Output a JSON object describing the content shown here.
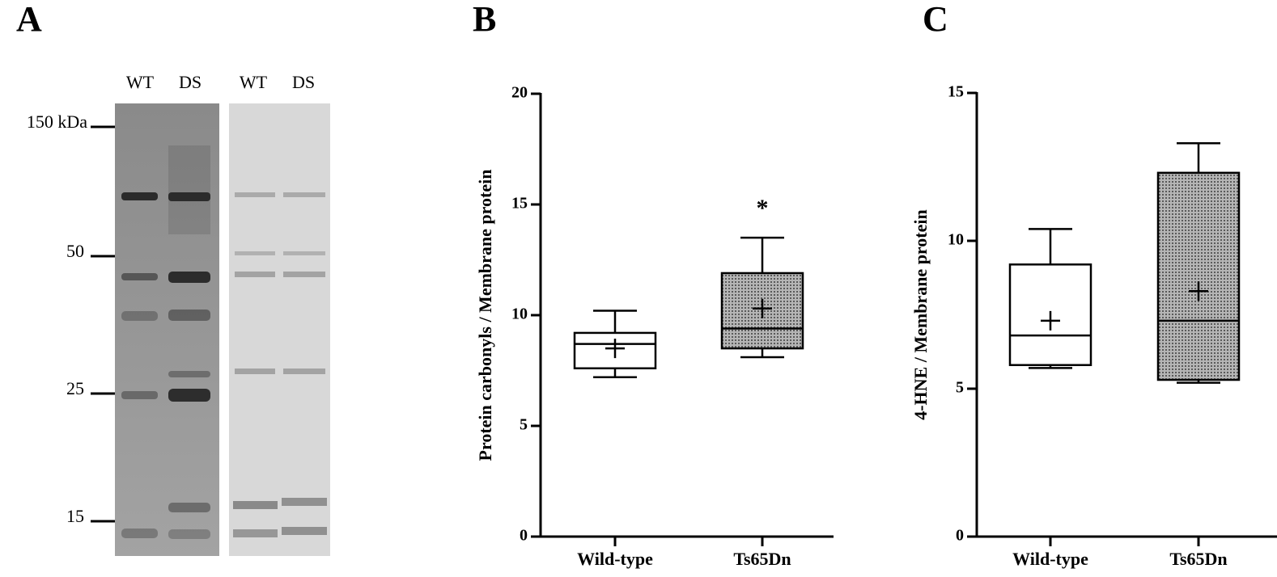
{
  "panels": [
    "A",
    "B",
    "C"
  ],
  "blot": {
    "lanes": [
      "WT",
      "DS",
      "WT",
      "DS"
    ],
    "markers": [
      "150 kDa",
      "50",
      "25",
      "15"
    ]
  },
  "chart_data": [
    {
      "type": "box",
      "ylabel": "Protein carbonyls / Membrane protein",
      "categories": [
        "Wild-type",
        "Ts65Dn"
      ],
      "ylim": [
        0,
        20
      ],
      "yticks": [
        0,
        5,
        10,
        15,
        20
      ],
      "boxes": [
        {
          "whislo": 7.2,
          "q1": 7.6,
          "med": 8.7,
          "q3": 9.2,
          "whishi": 10.2,
          "mean": 8.5,
          "color": "#ffffff"
        },
        {
          "whislo": 8.1,
          "q1": 8.5,
          "med": 9.4,
          "q3": 11.9,
          "whishi": 13.5,
          "mean": 10.3,
          "color": "#9c9c9c"
        }
      ],
      "annotation": {
        "text": "*",
        "category": "Ts65Dn"
      }
    },
    {
      "type": "box",
      "ylabel": "4-HNE / Membrane protein",
      "categories": [
        "Wild-type",
        "Ts65Dn"
      ],
      "ylim": [
        0,
        15
      ],
      "yticks": [
        0,
        5,
        10,
        15
      ],
      "boxes": [
        {
          "whislo": 5.7,
          "q1": 5.8,
          "med": 6.8,
          "q3": 9.2,
          "whishi": 10.4,
          "mean": 7.3,
          "color": "#ffffff"
        },
        {
          "whislo": 5.2,
          "q1": 5.3,
          "med": 7.3,
          "q3": 12.3,
          "whishi": 13.3,
          "mean": 8.3,
          "color": "#9c9c9c"
        }
      ]
    }
  ]
}
